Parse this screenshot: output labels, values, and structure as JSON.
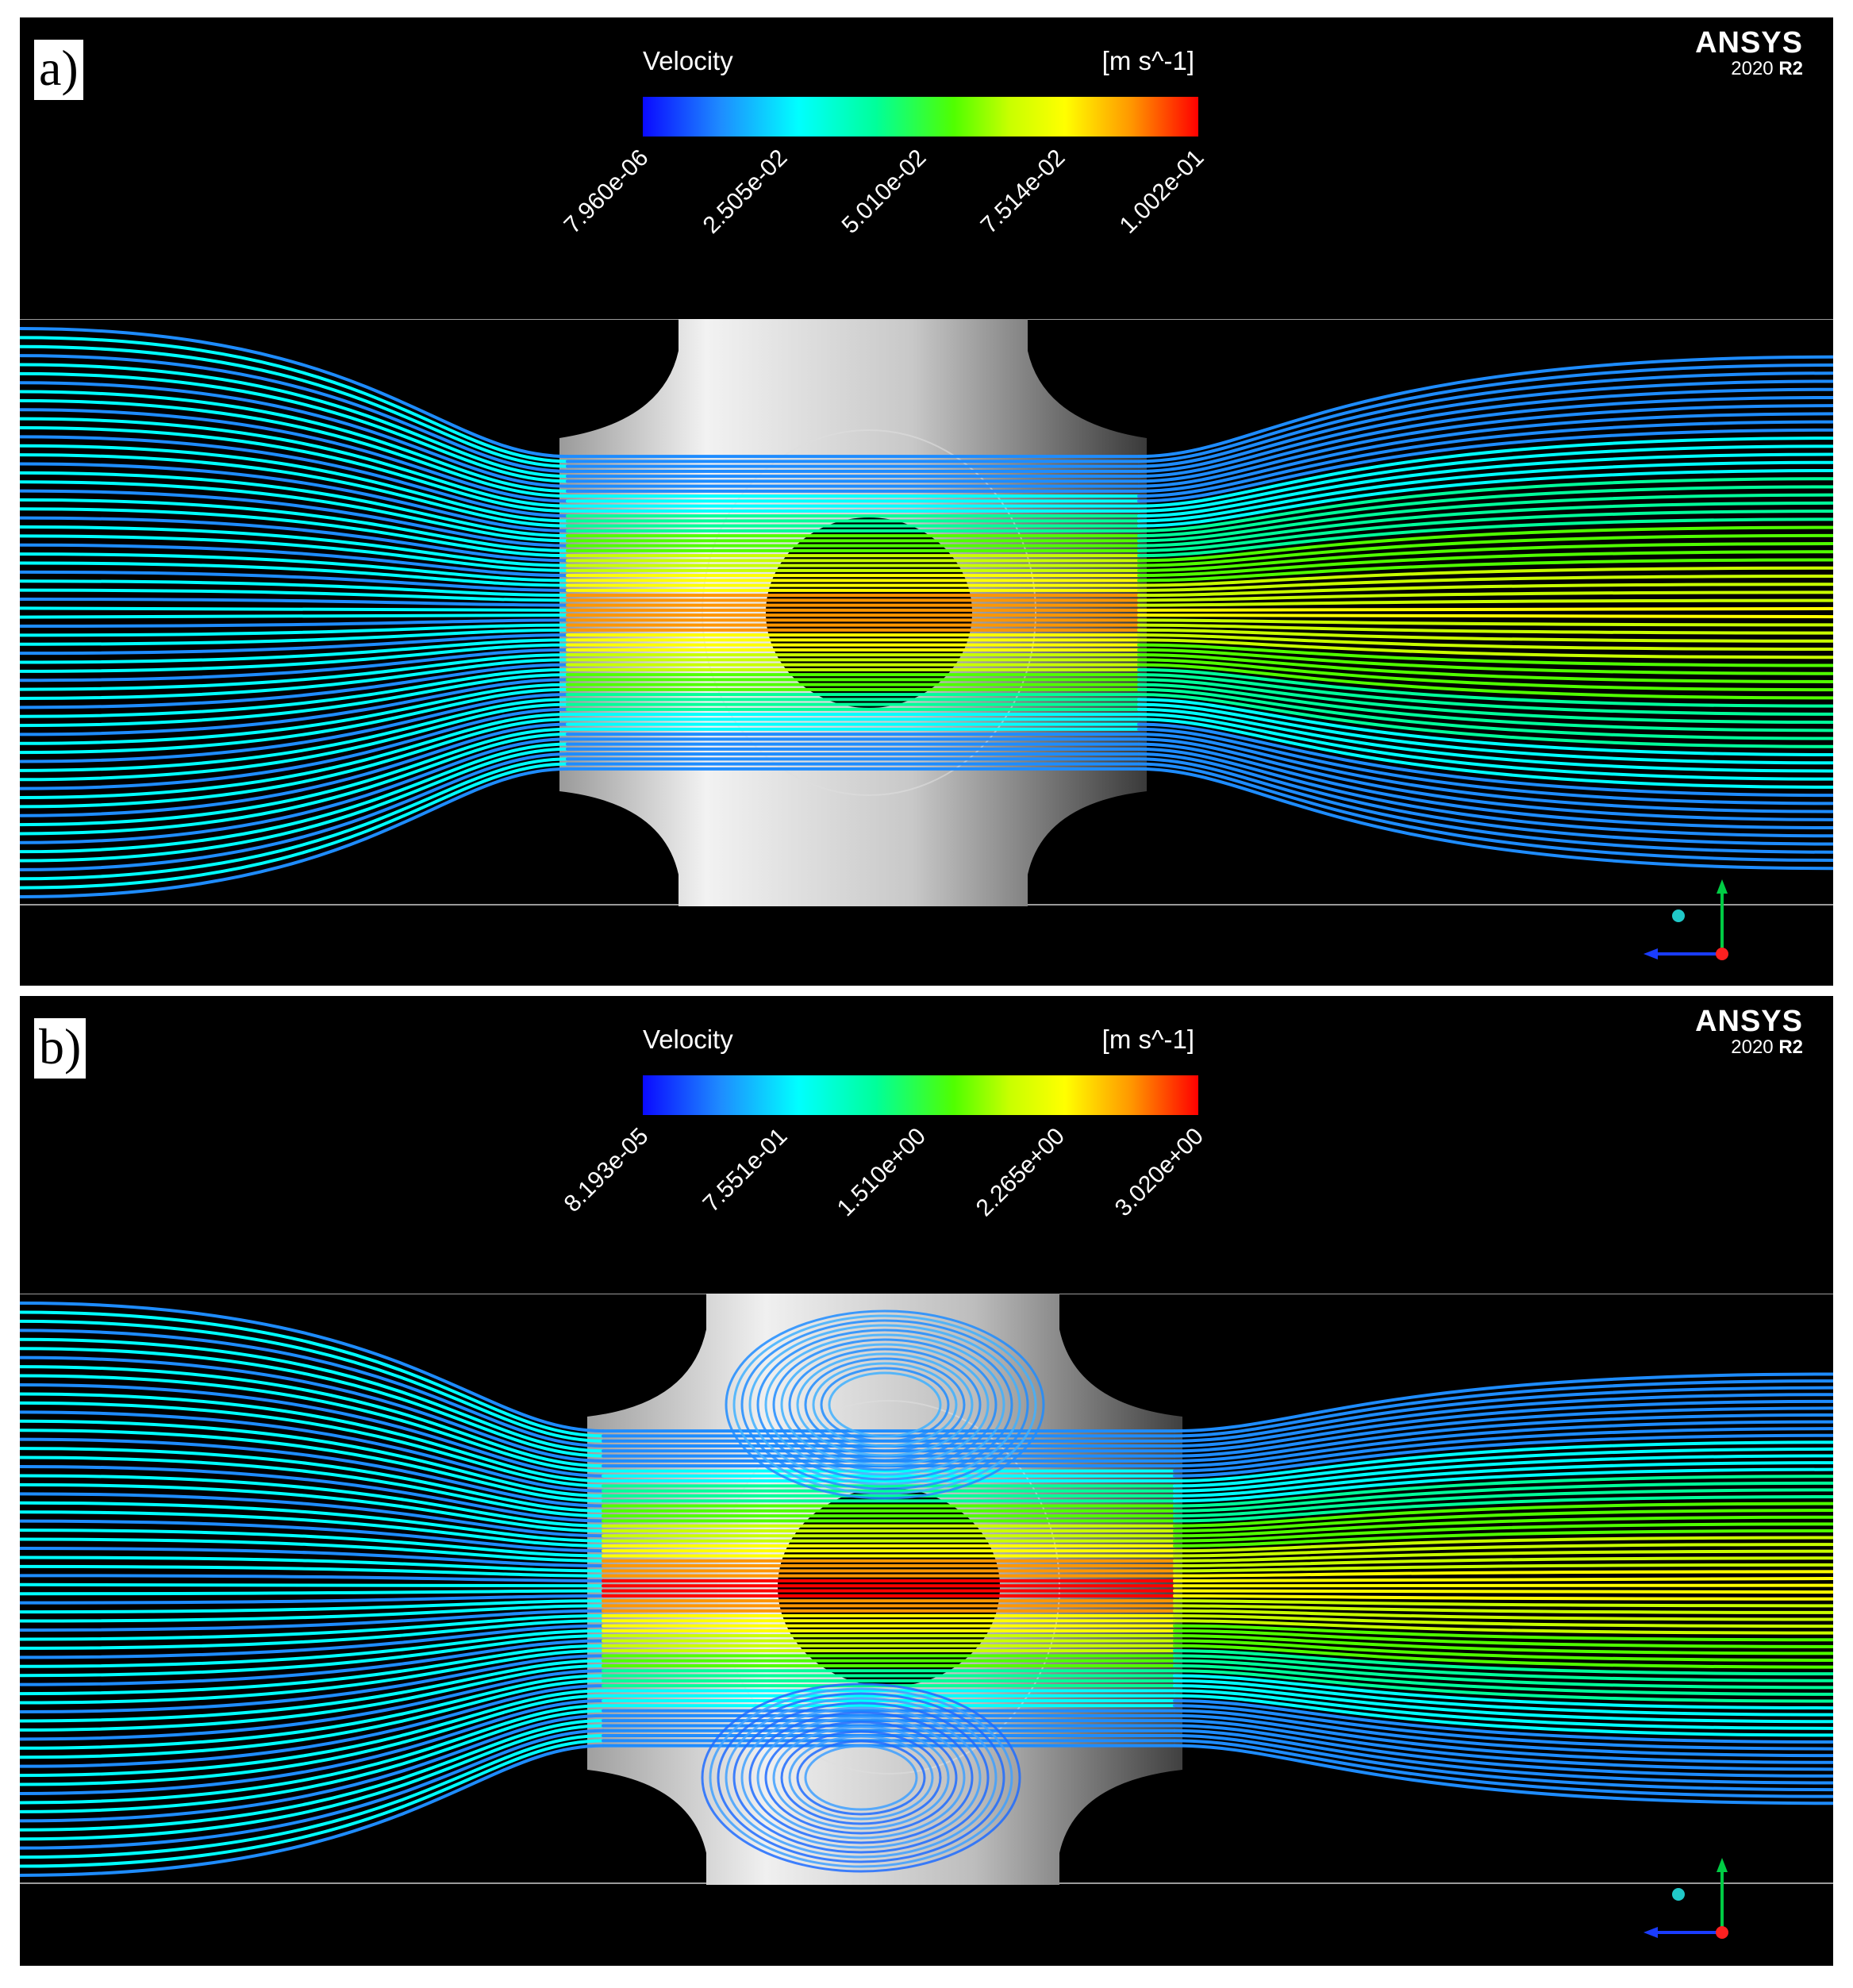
{
  "brand": {
    "name": "ANSYS",
    "version": "2020",
    "release": "R2"
  },
  "panels": [
    {
      "label": "a)",
      "legend": {
        "title": "Velocity",
        "unit": "[m s^-1]",
        "ticks": [
          "7.960e-06",
          "2.505e-02",
          "5.010e-02",
          "7.514e-02",
          "1.002e-01"
        ]
      }
    },
    {
      "label": "b)",
      "legend": {
        "title": "Velocity",
        "unit": "[m s^-1]",
        "ticks": [
          "8.193e-05",
          "7.551e-01",
          "1.510e+00",
          "2.265e+00",
          "3.020e+00"
        ]
      }
    }
  ],
  "colormap": [
    "#0a0aff",
    "#1e8cff",
    "#00ffff",
    "#00ff9a",
    "#50ff00",
    "#c8ff00",
    "#ffff00",
    "#ff9600",
    "#ff0000"
  ]
}
